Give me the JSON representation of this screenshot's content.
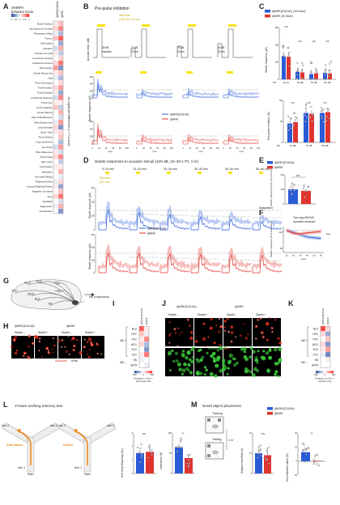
{
  "colors": {
    "blue": "#2a5bd7",
    "red": "#e0342f",
    "light_blue": "#9bb4ee",
    "light_red": "#f2a3a0",
    "heat_red": "#d7262b",
    "heat_blue": "#2c4fa3",
    "green": "#39c43a",
    "yellow": "#f7e21b",
    "cfos_red": "#e0301e"
  },
  "panel_a": {
    "letter": "A",
    "title": "SHIRPA",
    "subtitle": "behavior score",
    "cb_ticks": [
      "1",
      "0.5",
      "0",
      "-0.5",
      "-1"
    ],
    "col_labels": [
      "iβARK(D110A)",
      "iβARK"
    ],
    "side_note": "No significant differences (n = 7–8 mice)",
    "rows": [
      "Body Position",
      "Spontaneous Activity",
      "Respiration Rate",
      "Tremor",
      "Defecation",
      "Urination",
      "Transfer Arousal",
      "Locomotor Activity",
      "Palpebral Closure",
      "Piloerection",
      "Startle Response",
      "Gait",
      "Pelvic Elevation",
      "Tail Elevation",
      "Touch Escape",
      "Positional Passivity",
      "Trunk Curl",
      "Limb Grasping",
      "Visual Placing",
      "Abnormal Behavior",
      "Wire Manoeuvre",
      "Grip Strength",
      "Body Tone",
      "Pinna Reflex",
      "Corneal Reflex",
      "Toe Pinch",
      "Wire Maneuver",
      "Heart Rate",
      "Skin Color",
      "Lacrimation",
      "Salivation",
      "Provoked Biting",
      "Righting Reflex",
      "Contact Righting Reflex",
      "Negative Geotaxis",
      "Fear",
      "Irritability",
      "Aggression",
      "Vocalization"
    ],
    "values_d110a": [
      0.1,
      0.2,
      -0.1,
      0.3,
      0.0,
      -0.2,
      0.1,
      0.0,
      0.2,
      0.5,
      0.1,
      -0.1,
      0.0,
      0.2,
      0.1,
      -0.2,
      0.1,
      0.3,
      0.0,
      0.0,
      -0.1,
      0.2,
      0.1,
      0.0,
      0.0,
      -0.2,
      0.1,
      0.2,
      0.0,
      0.1,
      0.0,
      0.0,
      -0.1,
      0.1,
      0.0,
      0.2,
      0.0,
      -0.1,
      0.0
    ],
    "values_bark": [
      0.3,
      0.6,
      -0.4,
      0.8,
      -0.5,
      0.4,
      -0.3,
      0.2,
      0.7,
      -0.6,
      0.3,
      -0.4,
      0.2,
      0.5,
      -0.5,
      0.6,
      0.1,
      -0.3,
      0.4,
      -0.2,
      0.5,
      -0.6,
      0.2,
      0.3,
      -0.4,
      0.5,
      -0.2,
      0.6,
      -0.3,
      0.1,
      0.4,
      -0.1,
      0.2,
      -0.5,
      0.3,
      0.7,
      -0.2,
      0.4,
      -0.6
    ]
  },
  "panel_b": {
    "letter": "B",
    "title": "Pre-pulse inhibition",
    "stimulus": "Stimulus (120 dB, 20 ms)",
    "yaxis_top": "Acoustic stim. (dB)",
    "conds": [
      "65 dB baseline",
      "70 dB 20 ms",
      "75 dB 20 ms",
      "80 dB 20 ms"
    ],
    "yaxis": "Startle response (μV)",
    "ticks_y": [
      "600",
      "400",
      "200",
      "0"
    ],
    "ticks_x": [
      "0",
      "20",
      "40",
      "60",
      "80",
      "100"
    ],
    "xunit": "(ms)",
    "legend": [
      "iβARK(D110A)",
      "iβARK"
    ]
  },
  "panel_c": {
    "letter": "C",
    "legend": [
      "iβARK(D110A) (10 mice)",
      "iβARK (8 mice)"
    ],
    "top_ylabel": "Startle response (μV)",
    "top_ticks": [
      "600",
      "400",
      "200",
      "0"
    ],
    "top_groups": [
      "None",
      "70 dB",
      "75 dB",
      "80 dB"
    ],
    "top_pp": "PP",
    "top_means_d110a": [
      270,
      85,
      60,
      75
    ],
    "top_means_bark": [
      260,
      80,
      70,
      70
    ],
    "bot_ylabel": "Pre-pulse inhibition (%)",
    "bot_ticks": [
      "100",
      "50",
      "0"
    ],
    "bot_groups": [
      "70 dB",
      "75 dB",
      "80 dB"
    ],
    "bot_pp": "PP",
    "bot_means_d110a": [
      45,
      70,
      70
    ],
    "bot_means_bark": [
      48,
      68,
      72
    ],
    "ns": "NS"
  },
  "panel_d": {
    "letter": "D",
    "title": "Startle responses to acoustic stimuli (120 dB, 10–30 s ITI, 1 hr)",
    "windows": [
      "0–10 min",
      "10–20 min",
      "20–30 min",
      "30–40 min",
      "40–50 min",
      "50–60 min"
    ],
    "stimulus": "Stimulus (20 ms)",
    "adaptation": "Adaptation",
    "ylabel": "Startle response (μV)",
    "ticks_y": [
      "300",
      "200",
      "100",
      "0"
    ],
    "ticks_x": [
      "0",
      "20",
      "40",
      "60",
      "80",
      "100",
      "120",
      "140",
      "160",
      "180"
    ],
    "xunit": "(ms)",
    "legend": [
      "iβARK(D110A)",
      "iβARK"
    ]
  },
  "panel_e": {
    "letter": "E",
    "legend": [
      "iβARK(D110A)",
      "iβARK"
    ],
    "ylabel": "Startle response (μV) of 0–10 min",
    "ticks": [
      "400",
      "200",
      "0"
    ],
    "ns": "NS",
    "mean_d110a": 200,
    "mean_bark": 180
  },
  "panel_f": {
    "letter": "F",
    "note": "Two-way ANOVA repeated measure",
    "ylabel": "Startle response (% to baseline)",
    "ticks_y": [
      "100",
      "50"
    ],
    "ticks_x": [
      "10",
      "20",
      "30",
      "40",
      "50",
      "60"
    ],
    "xunit": "(min)",
    "sig": "***",
    "d110a": [
      100,
      95,
      88,
      82,
      80,
      78
    ],
    "bark": [
      100,
      92,
      90,
      93,
      95,
      97
    ]
  },
  "panel_g": {
    "letter": "G",
    "regions": [
      "SCX",
      "VCX",
      "MCX",
      "PFC",
      "HPC",
      "BLA",
      "dSTR",
      "SN"
    ],
    "note": "NE projections"
  },
  "panel_h": {
    "letter": "H",
    "groups": [
      "iβARK(D110A)",
      "iβARK"
    ],
    "conds": [
      "Startle –",
      "Startle +",
      "Startle –",
      "Startle +"
    ],
    "label_a": "Astrocyte",
    "label_b": "cFos"
  },
  "panel_i": {
    "letter": "I",
    "cols": [
      "iβARK(D110A)",
      "iβARK"
    ],
    "ne_plus": "NE +",
    "ne_minus": "NE –",
    "rows": [
      "BLA",
      "HPC",
      "PFC",
      "MCX",
      "SCX",
      "VCX",
      "SN",
      "dSTR"
    ],
    "xlabel": "Change in c-Fos + astrocytes (%)",
    "cb_ticks": [
      "-500",
      "0",
      "500"
    ],
    "vals_d110a": [
      0.8,
      0.3,
      0.1,
      0.2,
      0.0,
      0.1,
      -0.1,
      0.0
    ],
    "vals_bark": [
      0.1,
      -0.1,
      0.6,
      -0.4,
      -0.6,
      0.7,
      0.0,
      -0.1
    ]
  },
  "panel_j": {
    "letter": "J",
    "groups": [
      "iβARK(D110A)",
      "iβARK"
    ],
    "conds": [
      "Startle –",
      "Startle +",
      "Startle –",
      "Startle +"
    ],
    "label_a": "Neuron",
    "label_b": "cFos"
  },
  "panel_k": {
    "letter": "K",
    "cols": [
      "iβARK(D110A)",
      "iβARK"
    ],
    "ne_plus": "NE +",
    "ne_minus": "NE –",
    "rows": [
      "BLA",
      "HPC",
      "PFC",
      "MCX",
      "SCX",
      "VCX",
      "SN",
      "dSTR"
    ],
    "xlabel": "Change in c-Fos + neurons (%)",
    "cb_ticks": [
      "-500",
      "0",
      "500"
    ],
    "vals_d110a": [
      0.9,
      0.2,
      0.0,
      0.2,
      0.1,
      -0.1,
      0.0,
      0.0
    ],
    "vals_bark": [
      0.2,
      -0.5,
      0.3,
      -0.6,
      0.5,
      -0.7,
      0.1,
      0.0
    ]
  },
  "panel_l": {
    "letter": "L",
    "title": "Y-maze working memory test",
    "arms": [
      "Arm 2",
      "Arm 3",
      "Arm 1",
      "Arm 2",
      "Arm 3",
      "Arm 1"
    ],
    "labels": [
      "Alternation",
      "Failure"
    ],
    "start": "Start",
    "ylabel1": "Arm entry frequency (no.)",
    "ticks1": [
      "6",
      "4",
      "2",
      "0"
    ],
    "ns": "NS",
    "ylabel2": "Alternation (%)",
    "ticks2": [
      "100",
      "50",
      "0"
    ],
    "sig": "**",
    "entry_d110a": 3.0,
    "entry_bark": 3.2,
    "alt_d110a": 65,
    "alt_bark": 38
  },
  "panel_m": {
    "letter": "M",
    "title": "Novel object placement",
    "training": "Training",
    "testing": "Testing",
    "gap": "1 hr",
    "legend": [
      "iβARK(D110A)",
      "iβARK"
    ],
    "ylabel1": "Distance travelled (m)",
    "ticks1": [
      "20",
      "10",
      "0"
    ],
    "ns": "NS",
    "ylabel2": "Discrimination Index (%)",
    "ticks2": [
      "40",
      "20",
      "0",
      "-20"
    ],
    "sig": "**",
    "dist_d110a": 10,
    "dist_bark": 9,
    "di_d110a": 13,
    "di_bark": 0
  }
}
